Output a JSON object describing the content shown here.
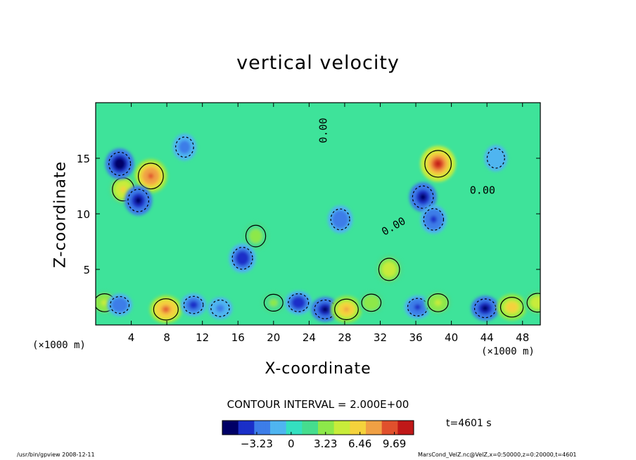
{
  "figure": {
    "x_unit_left": "(×1000 m)",
    "x_unit_right": "(×1000 m)",
    "contour_interval": "CONTOUR INTERVAL = 2.000E+00",
    "time_label": "t=4601 s",
    "footer_left": "/usr/bin/gpview   2008-12-11",
    "footer_right": "MarsCond_VelZ.nc@VelZ,x=0:50000,z=0:20000,t=4601"
  },
  "chart_data": {
    "type": "heatmap",
    "title": "vertical velocity",
    "xlabel": "X-coordinate",
    "ylabel": "Z-coordinate",
    "xlim": [
      0,
      50
    ],
    "ylim": [
      0,
      20
    ],
    "x_ticks": [
      4,
      8,
      12,
      16,
      20,
      24,
      28,
      32,
      36,
      40,
      44,
      48
    ],
    "x_tick_labels": [
      "4",
      "8",
      "12",
      "16",
      "20",
      "24",
      "28",
      "32",
      "36",
      "40",
      "44",
      "48"
    ],
    "y_ticks": [
      5,
      10,
      15
    ],
    "y_tick_labels": [
      "5",
      "10",
      "15"
    ],
    "contour_labels": [
      {
        "text": "0.00",
        "x": 26,
        "z": 17.5,
        "rotate": -90
      },
      {
        "text": "0.00",
        "x": 43.5,
        "z": 11.8,
        "rotate": 0
      },
      {
        "text": "0.00",
        "x": 33.7,
        "z": 8.6,
        "rotate": -30
      }
    ],
    "colorbar": {
      "min": -6.46,
      "max": 11.5,
      "tick_values": [
        -3.23,
        0,
        3.23,
        6.46,
        9.69
      ],
      "tick_labels": [
        "−3.23",
        "0",
        "3.23",
        "6.46",
        "9.69"
      ]
    },
    "colors": {
      "background": "#3ee39a",
      "level_colors": [
        "#000066",
        "#1a2fc8",
        "#3d7de8",
        "#4fb5f0",
        "#34e0c0",
        "#46dd8e",
        "#8de84a",
        "#c8ec3a",
        "#f4d23c",
        "#f0a044",
        "#e0502c",
        "#c01818"
      ]
    },
    "features": [
      {
        "kind": "updraft",
        "x": 1.0,
        "z": 2.0,
        "value": 4.5
      },
      {
        "kind": "downdraft",
        "x": 2.7,
        "z": 1.8,
        "value": -3.0
      },
      {
        "kind": "updraft",
        "x": 7.9,
        "z": 1.4,
        "value": 9.0
      },
      {
        "kind": "downdraft",
        "x": 11.0,
        "z": 1.8,
        "value": -3.5
      },
      {
        "kind": "downdraft",
        "x": 14.0,
        "z": 1.5,
        "value": -2.5
      },
      {
        "kind": "updraft",
        "x": 20.0,
        "z": 2.0,
        "value": 3.0
      },
      {
        "kind": "downdraft",
        "x": 22.8,
        "z": 2.0,
        "value": -4.5
      },
      {
        "kind": "downdraft",
        "x": 25.8,
        "z": 1.4,
        "value": -5.5
      },
      {
        "kind": "updraft",
        "x": 28.2,
        "z": 1.4,
        "value": 8.0
      },
      {
        "kind": "updraft",
        "x": 31.0,
        "z": 2.0,
        "value": 3.5
      },
      {
        "kind": "downdraft",
        "x": 36.2,
        "z": 1.6,
        "value": -4.0
      },
      {
        "kind": "updraft",
        "x": 38.5,
        "z": 2.0,
        "value": 4.5
      },
      {
        "kind": "downdraft",
        "x": 43.8,
        "z": 1.5,
        "value": -5.5
      },
      {
        "kind": "updraft",
        "x": 46.8,
        "z": 1.6,
        "value": 7.0
      },
      {
        "kind": "updraft",
        "x": 49.7,
        "z": 2.0,
        "value": 5.5
      },
      {
        "kind": "updraft",
        "x": 6.2,
        "z": 13.4,
        "value": 9.5
      },
      {
        "kind": "updraft",
        "x": 3.1,
        "z": 12.2,
        "value": 6.0
      },
      {
        "kind": "downdraft",
        "x": 2.7,
        "z": 14.5,
        "value": -6.0
      },
      {
        "kind": "downdraft",
        "x": 4.8,
        "z": 11.2,
        "value": -5.0
      },
      {
        "kind": "updraft",
        "x": 38.5,
        "z": 14.5,
        "value": 11.0
      },
      {
        "kind": "downdraft",
        "x": 36.8,
        "z": 11.5,
        "value": -5.0
      },
      {
        "kind": "downdraft",
        "x": 38.0,
        "z": 9.5,
        "value": -4.0
      },
      {
        "kind": "updraft",
        "x": 18.0,
        "z": 8.0,
        "value": 4.0
      },
      {
        "kind": "downdraft",
        "x": 16.5,
        "z": 6.0,
        "value": -4.5
      },
      {
        "kind": "updraft",
        "x": 33.0,
        "z": 5.0,
        "value": 5.0
      },
      {
        "kind": "downdraft",
        "x": 27.5,
        "z": 9.5,
        "value": -3.0
      },
      {
        "kind": "downdraft",
        "x": 10.0,
        "z": 16.0,
        "value": -2.0
      },
      {
        "kind": "downdraft",
        "x": 45.0,
        "z": 15.0,
        "value": -1.5
      }
    ]
  }
}
